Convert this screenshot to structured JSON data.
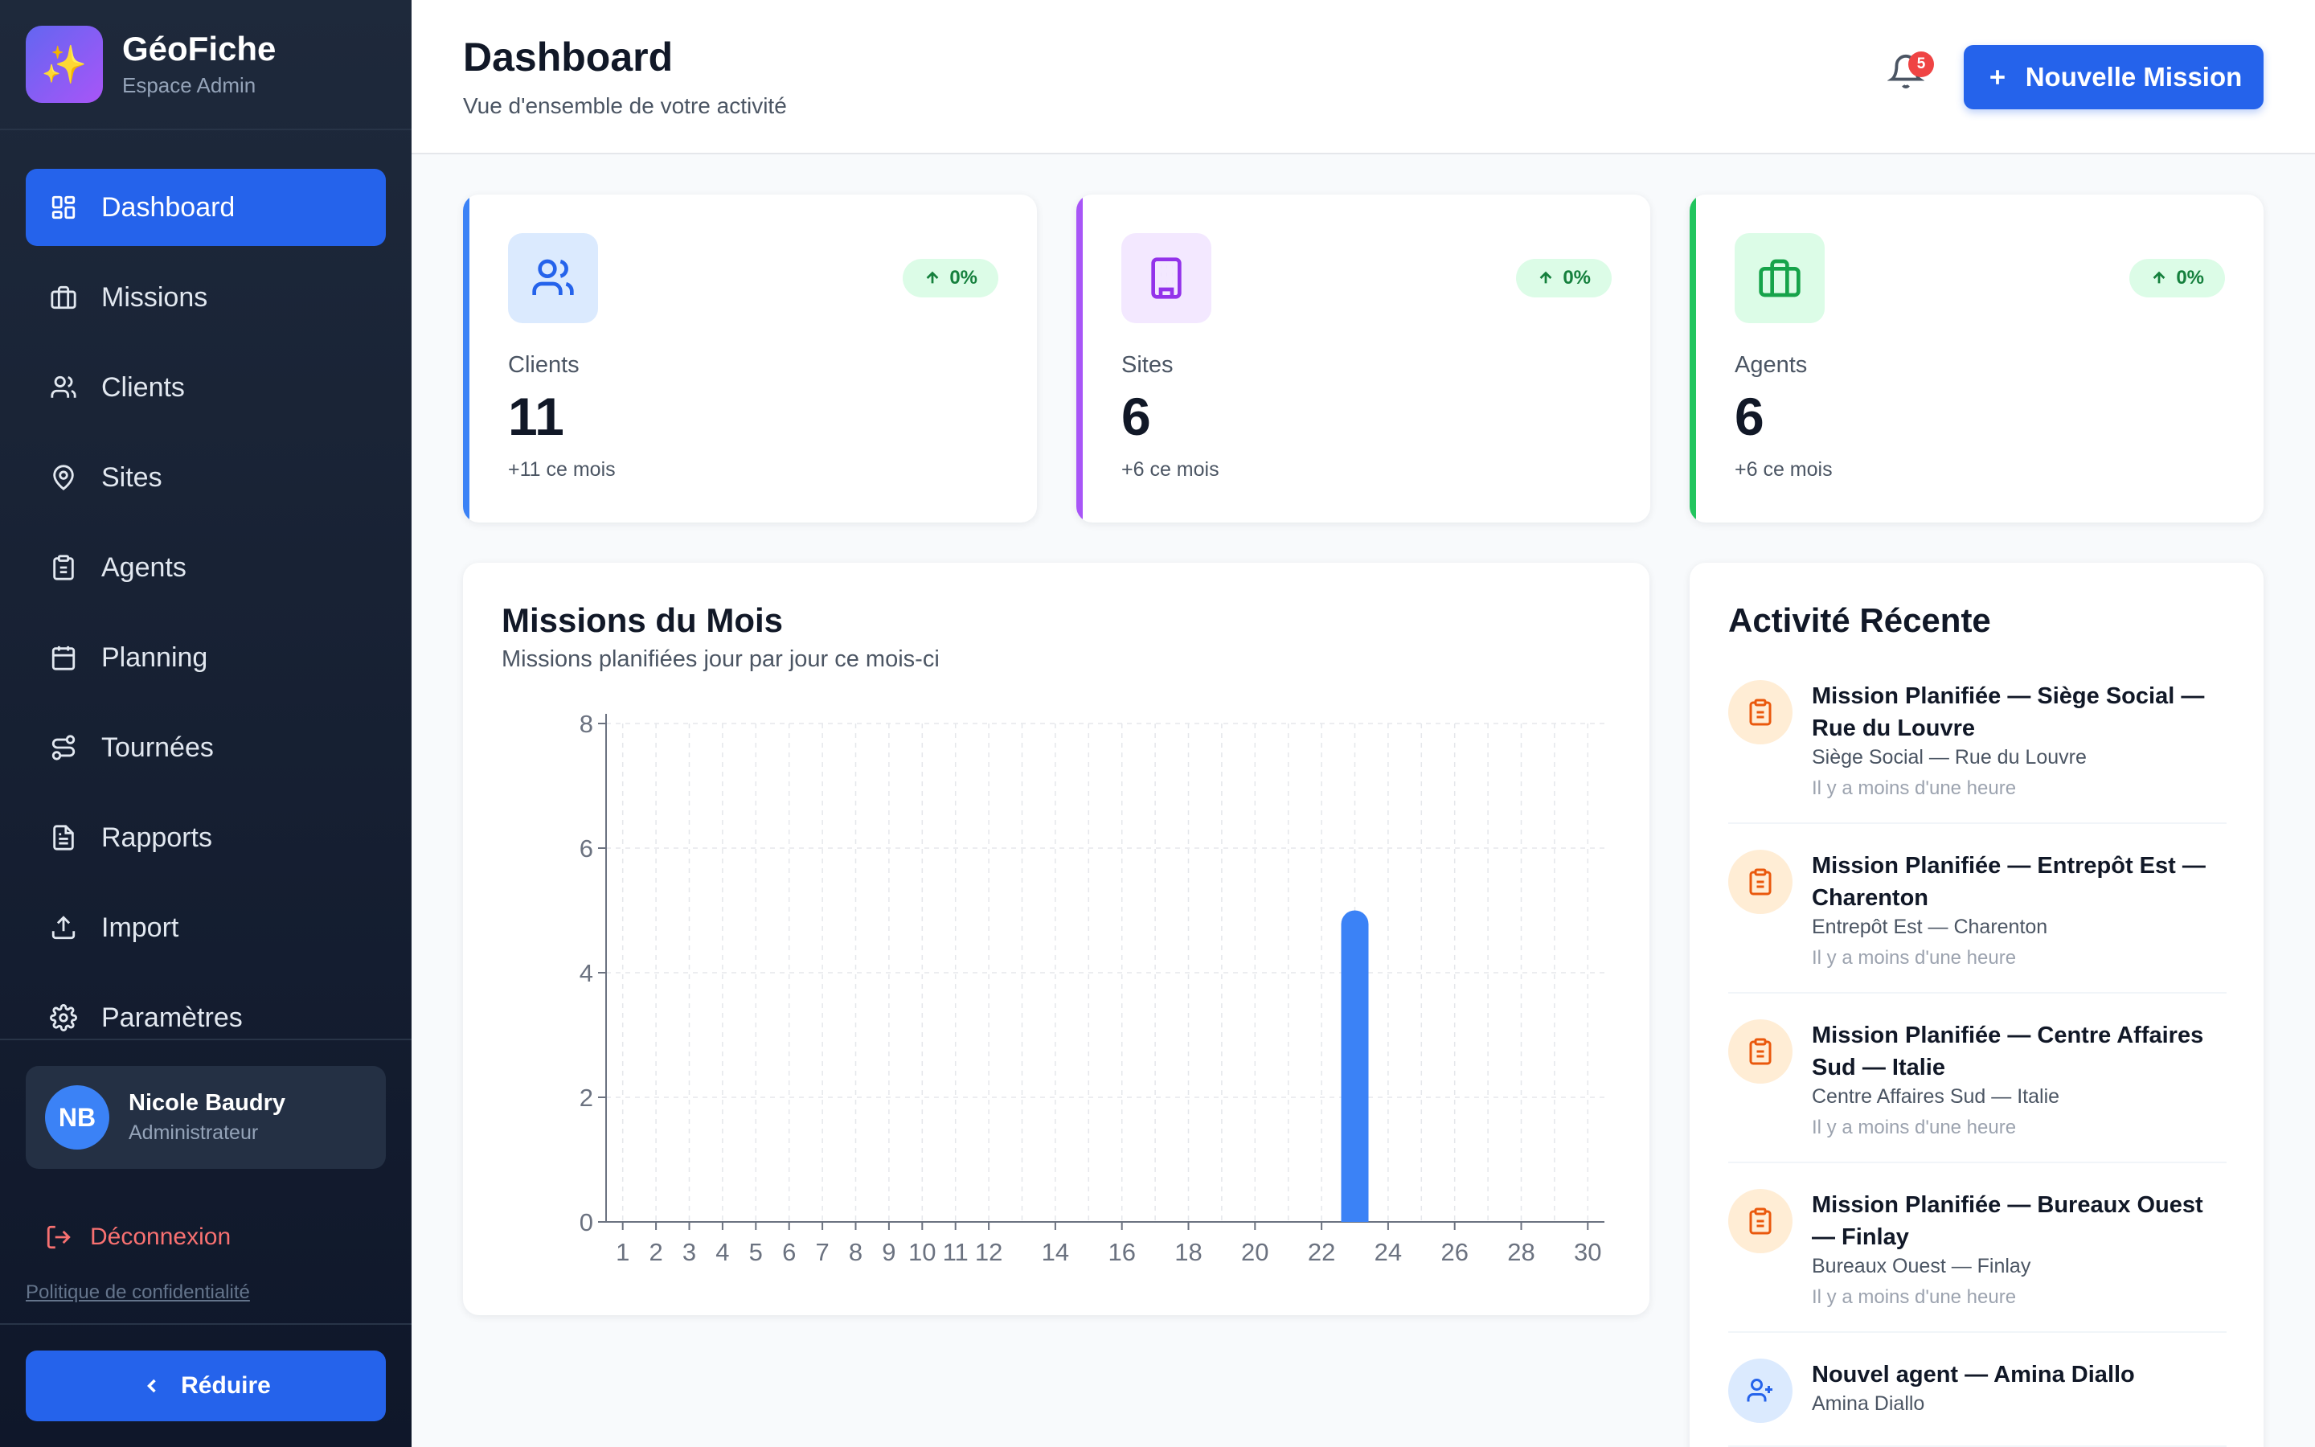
{
  "brand": {
    "title": "GéoFiche",
    "subtitle": "Espace Admin"
  },
  "nav": [
    {
      "label": "Dashboard",
      "icon": "dashboard-icon",
      "active": true
    },
    {
      "label": "Missions",
      "icon": "briefcase-icon"
    },
    {
      "label": "Clients",
      "icon": "users-icon"
    },
    {
      "label": "Sites",
      "icon": "map-pin-icon"
    },
    {
      "label": "Agents",
      "icon": "clipboard-icon"
    },
    {
      "label": "Planning",
      "icon": "calendar-icon"
    },
    {
      "label": "Tournées",
      "icon": "route-icon"
    },
    {
      "label": "Rapports",
      "icon": "file-icon"
    },
    {
      "label": "Import",
      "icon": "upload-icon"
    },
    {
      "label": "Paramètres",
      "icon": "gear-icon"
    }
  ],
  "user": {
    "initials": "NB",
    "name": "Nicole Baudry",
    "role": "Administrateur"
  },
  "sidebar_footer": {
    "logout": "Déconnexion",
    "privacy": "Politique de confidentialité",
    "reduce": "Réduire"
  },
  "header": {
    "title": "Dashboard",
    "subtitle": "Vue d'ensemble de votre activité",
    "notifications": "5",
    "new_mission": "Nouvelle Mission"
  },
  "stats": [
    {
      "label": "Clients",
      "value": "11",
      "delta": "+11 ce mois",
      "trend": "0%",
      "accent": "#3b82f6"
    },
    {
      "label": "Sites",
      "value": "6",
      "delta": "+6 ce mois",
      "trend": "0%",
      "accent": "#a855f7"
    },
    {
      "label": "Agents",
      "value": "6",
      "delta": "+6 ce mois",
      "trend": "0%",
      "accent": "#22c55e"
    }
  ],
  "chart": {
    "title": "Missions du Mois",
    "subtitle": "Missions planifiées jour par jour ce mois-ci"
  },
  "chart_data": {
    "type": "bar",
    "x": [
      1,
      2,
      3,
      4,
      5,
      6,
      7,
      8,
      9,
      10,
      11,
      12,
      13,
      14,
      15,
      16,
      17,
      18,
      19,
      20,
      21,
      22,
      23,
      24,
      25,
      26,
      27,
      28,
      29,
      30
    ],
    "values": [
      0,
      0,
      0,
      0,
      0,
      0,
      0,
      0,
      0,
      0,
      0,
      0,
      0,
      0,
      0,
      0,
      0,
      0,
      0,
      0,
      0,
      0,
      5,
      0,
      0,
      0,
      0,
      0,
      0,
      0
    ],
    "xtick_labels": [
      "1",
      "2",
      "3",
      "4",
      "5",
      "6",
      "7",
      "8",
      "9",
      "10",
      "11",
      "12",
      "14",
      "16",
      "18",
      "20",
      "22",
      "24",
      "26",
      "28",
      "30"
    ],
    "yticks": [
      0,
      2,
      4,
      6,
      8
    ],
    "ylim": [
      0,
      8
    ],
    "grid": true,
    "color": "#3b82f6"
  },
  "activity": {
    "title": "Activité Récente",
    "items": [
      {
        "title": "Mission Planifiée — Siège Social — Rue du Louvre",
        "desc": "Siège Social — Rue du Louvre",
        "time": "Il y a moins d'une heure",
        "icon": "clipboard-icon"
      },
      {
        "title": "Mission Planifiée — Entrepôt Est — Charenton",
        "desc": "Entrepôt Est — Charenton",
        "time": "Il y a moins d'une heure",
        "icon": "clipboard-icon"
      },
      {
        "title": "Mission Planifiée — Centre Affaires Sud — Italie",
        "desc": "Centre Affaires Sud — Italie",
        "time": "Il y a moins d'une heure",
        "icon": "clipboard-icon"
      },
      {
        "title": "Mission Planifiée — Bureaux Ouest — Finlay",
        "desc": "Bureaux Ouest — Finlay",
        "time": "Il y a moins d'une heure",
        "icon": "clipboard-icon"
      },
      {
        "title": "Nouvel agent — Amina Diallo",
        "desc": "Amina Diallo",
        "time": "",
        "icon": "user-plus-icon"
      }
    ]
  }
}
